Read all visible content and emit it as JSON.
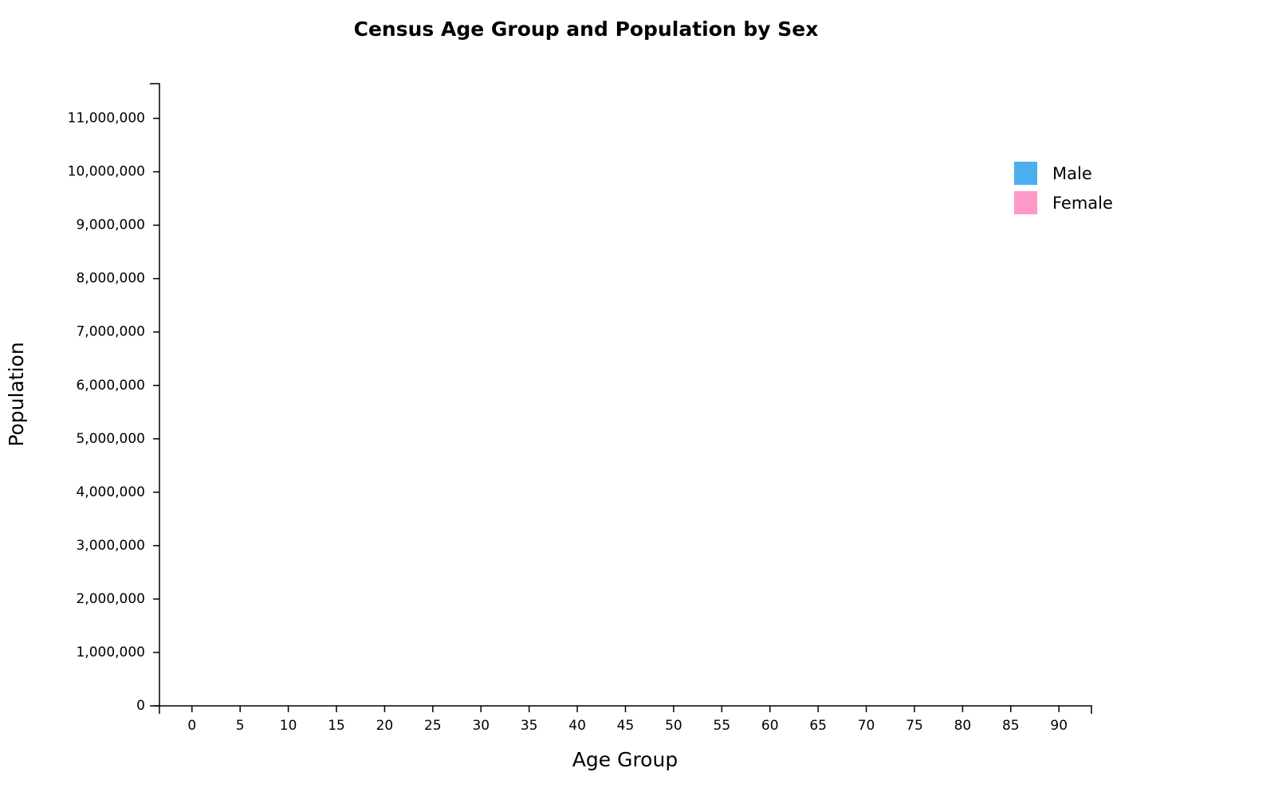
{
  "chart_data": {
    "type": "bar",
    "title": "Census Age Group and Population by Sex",
    "x_label": "Age Group",
    "y_label": "Population",
    "categories": [
      "0",
      "5",
      "10",
      "15",
      "20",
      "25",
      "30",
      "35",
      "40",
      "45",
      "50",
      "55",
      "60",
      "65",
      "70",
      "75",
      "80",
      "85",
      "90"
    ],
    "series": [
      {
        "name": "Male",
        "color": "#4aaeef",
        "values": [
          0,
          0,
          0,
          0,
          0,
          0,
          0,
          0,
          0,
          0,
          0,
          0,
          0,
          0,
          0,
          0,
          0,
          0,
          0
        ]
      },
      {
        "name": "Female",
        "color": "#ff99c8",
        "values": [
          0,
          0,
          0,
          0,
          0,
          0,
          0,
          0,
          0,
          0,
          0,
          0,
          0,
          0,
          0,
          0,
          0,
          0,
          0
        ]
      }
    ],
    "ylim": [
      0,
      11650000
    ],
    "yticks": [
      0,
      {
        "value": 1000000,
        "label": "1,000,000"
      },
      {
        "value": 2000000,
        "label": "2,000,000"
      },
      {
        "value": 3000000,
        "label": "3,000,000"
      },
      {
        "value": 4000000,
        "label": "4,000,000"
      },
      {
        "value": 5000000,
        "label": "5,000,000"
      },
      {
        "value": 6000000,
        "label": "6,000,000"
      },
      {
        "value": 7000000,
        "label": "7,000,000"
      },
      {
        "value": 8000000,
        "label": "8,000,000"
      },
      {
        "value": 9000000,
        "label": "9,000,000"
      },
      {
        "value": 10000000,
        "label": "10,000,000"
      },
      {
        "value": 11000000,
        "label": "11,000,000"
      }
    ],
    "grid": false,
    "legend": "top-right"
  }
}
